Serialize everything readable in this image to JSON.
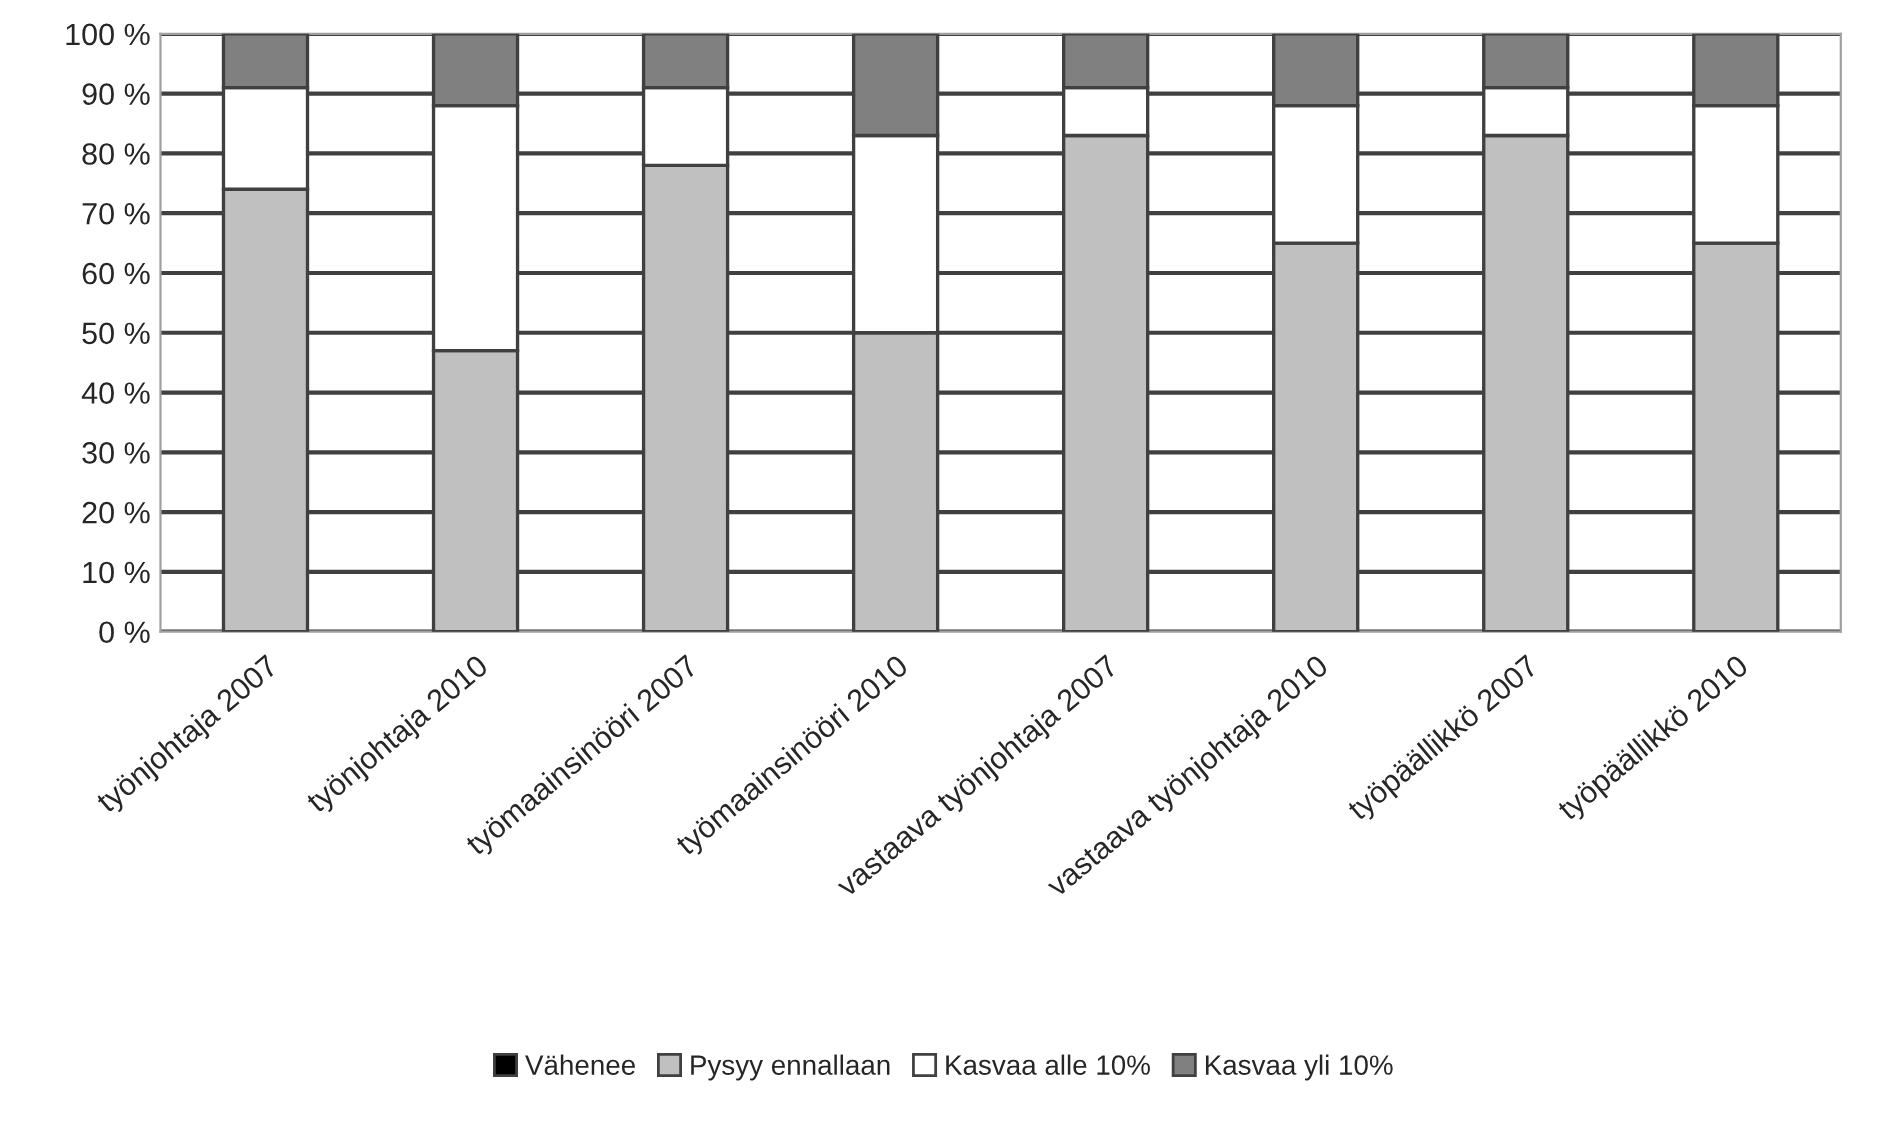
{
  "chart_data": {
    "type": "bar",
    "stacked": true,
    "categories": [
      "työnjohtaja 2007",
      "työnjohtaja 2010",
      "työmaainsinööri 2007",
      "työmaainsinööri 2010",
      "vastaava työnjohtaja 2007",
      "vastaava työnjohtaja 2010",
      "työpäällikkö 2007",
      "työpäällikkö 2010"
    ],
    "series": [
      {
        "name": "Vähenee",
        "color": "#000000",
        "values": [
          0,
          0,
          0,
          0,
          0,
          0,
          0,
          0
        ]
      },
      {
        "name": "Pysyy ennallaan",
        "color": "#c0c0c0",
        "values": [
          74,
          47,
          78,
          50,
          83,
          65,
          83,
          65
        ]
      },
      {
        "name": "Kasvaa alle 10%",
        "color": "#ffffff",
        "values": [
          17,
          41,
          13,
          33,
          8,
          23,
          8,
          23
        ]
      },
      {
        "name": "Kasvaa yli 10%",
        "color": "#808080",
        "values": [
          9,
          12,
          9,
          17,
          9,
          12,
          9,
          12
        ]
      }
    ],
    "ylim": [
      0,
      100
    ],
    "yticks": [
      {
        "value": 0,
        "label": "0 %"
      },
      {
        "value": 10,
        "label": "10 %"
      },
      {
        "value": 20,
        "label": "20 %"
      },
      {
        "value": 30,
        "label": "30 %"
      },
      {
        "value": 40,
        "label": "40 %"
      },
      {
        "value": 50,
        "label": "50 %"
      },
      {
        "value": 60,
        "label": "60 %"
      },
      {
        "value": 70,
        "label": "70 %"
      },
      {
        "value": 80,
        "label": "80 %"
      },
      {
        "value": 90,
        "label": "90 %"
      },
      {
        "value": 100,
        "label": "100 %"
      }
    ],
    "grid": "y",
    "legend": "bottom"
  }
}
